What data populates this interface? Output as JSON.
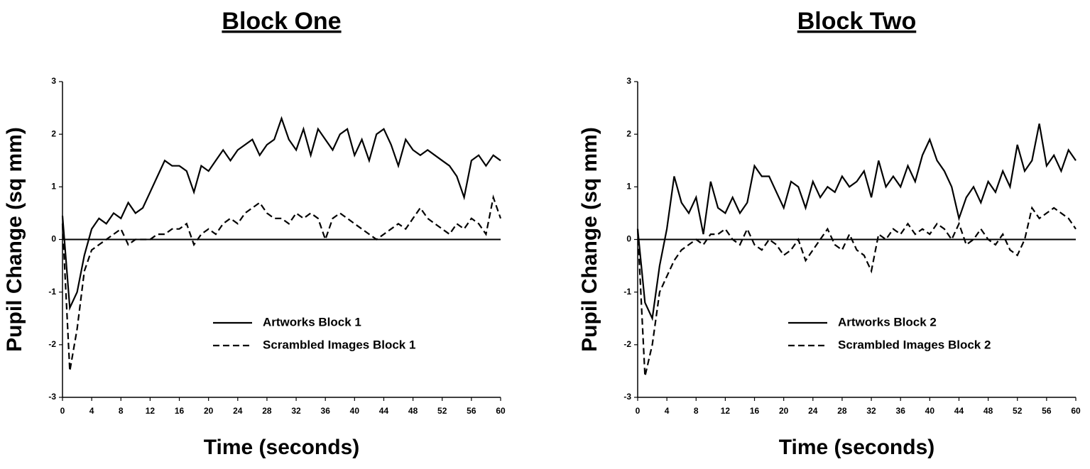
{
  "chart_data": [
    {
      "type": "line",
      "title": "Block One",
      "xlabel": "Time (seconds)",
      "ylabel": "Pupil Change (sq mm)",
      "x": [
        0,
        1,
        2,
        3,
        4,
        5,
        6,
        7,
        8,
        9,
        10,
        11,
        12,
        13,
        14,
        15,
        16,
        17,
        18,
        19,
        20,
        21,
        22,
        23,
        24,
        25,
        26,
        27,
        28,
        29,
        30,
        31,
        32,
        33,
        34,
        35,
        36,
        37,
        38,
        39,
        40,
        41,
        42,
        43,
        44,
        45,
        46,
        47,
        48,
        49,
        50,
        51,
        52,
        53,
        54,
        55,
        56,
        57,
        58,
        59,
        60
      ],
      "series": [
        {
          "name": "Artworks Block 1",
          "color": "#000000",
          "dash": "solid",
          "values": [
            0.45,
            -1.3,
            -1.0,
            -0.3,
            0.2,
            0.4,
            0.3,
            0.5,
            0.4,
            0.7,
            0.5,
            0.6,
            0.9,
            1.2,
            1.5,
            1.4,
            1.4,
            1.3,
            0.9,
            1.4,
            1.3,
            1.5,
            1.7,
            1.5,
            1.7,
            1.8,
            1.9,
            1.6,
            1.8,
            1.9,
            2.3,
            1.9,
            1.7,
            2.1,
            1.6,
            2.1,
            1.9,
            1.7,
            2.0,
            2.1,
            1.6,
            1.9,
            1.5,
            2.0,
            2.1,
            1.8,
            1.4,
            1.9,
            1.7,
            1.6,
            1.7,
            1.6,
            1.5,
            1.4,
            1.2,
            0.8,
            1.5,
            1.6,
            1.4,
            1.6,
            1.5
          ]
        },
        {
          "name": "Scrambled Images Block 1",
          "color": "#000000",
          "dash": "dashed",
          "values": [
            0.3,
            -2.5,
            -1.7,
            -0.6,
            -0.2,
            -0.1,
            0.0,
            0.1,
            0.2,
            -0.1,
            0.0,
            0.0,
            0.0,
            0.1,
            0.1,
            0.2,
            0.2,
            0.3,
            -0.1,
            0.1,
            0.2,
            0.1,
            0.3,
            0.4,
            0.3,
            0.5,
            0.6,
            0.7,
            0.5,
            0.4,
            0.4,
            0.3,
            0.5,
            0.4,
            0.5,
            0.4,
            0.0,
            0.4,
            0.5,
            0.4,
            0.3,
            0.2,
            0.1,
            0.0,
            0.1,
            0.2,
            0.3,
            0.2,
            0.4,
            0.6,
            0.4,
            0.3,
            0.2,
            0.1,
            0.3,
            0.2,
            0.4,
            0.3,
            0.1,
            0.8,
            0.4
          ]
        }
      ],
      "xlim": [
        0,
        60
      ],
      "xticks": [
        0,
        4,
        8,
        12,
        16,
        20,
        24,
        28,
        32,
        36,
        40,
        44,
        48,
        52,
        56,
        60
      ],
      "ylim": [
        -3,
        3
      ],
      "yticks": [
        -3,
        -2,
        -1,
        0,
        1,
        2,
        3
      ],
      "legend": "lower center"
    },
    {
      "type": "line",
      "title": "Block Two",
      "xlabel": "Time (seconds)",
      "ylabel": "Pupil Change (sq mm)",
      "x": [
        0,
        1,
        2,
        3,
        4,
        5,
        6,
        7,
        8,
        9,
        10,
        11,
        12,
        13,
        14,
        15,
        16,
        17,
        18,
        19,
        20,
        21,
        22,
        23,
        24,
        25,
        26,
        27,
        28,
        29,
        30,
        31,
        32,
        33,
        34,
        35,
        36,
        37,
        38,
        39,
        40,
        41,
        42,
        43,
        44,
        45,
        46,
        47,
        48,
        49,
        50,
        51,
        52,
        53,
        54,
        55,
        56,
        57,
        58,
        59,
        60
      ],
      "series": [
        {
          "name": "Artworks Block 2",
          "color": "#000000",
          "dash": "solid",
          "values": [
            0.2,
            -1.2,
            -1.5,
            -0.5,
            0.2,
            1.2,
            0.7,
            0.5,
            0.8,
            0.1,
            1.1,
            0.6,
            0.5,
            0.8,
            0.5,
            0.7,
            1.4,
            1.2,
            1.2,
            0.9,
            0.6,
            1.1,
            1.0,
            0.6,
            1.1,
            0.8,
            1.0,
            0.9,
            1.2,
            1.0,
            1.1,
            1.3,
            0.8,
            1.5,
            1.0,
            1.2,
            1.0,
            1.4,
            1.1,
            1.6,
            1.9,
            1.5,
            1.3,
            1.0,
            0.4,
            0.8,
            1.0,
            0.7,
            1.1,
            0.9,
            1.3,
            1.0,
            1.8,
            1.3,
            1.5,
            2.2,
            1.4,
            1.6,
            1.3,
            1.7,
            1.5
          ]
        },
        {
          "name": "Scrambled Images Block 2",
          "color": "#000000",
          "dash": "dashed",
          "values": [
            0.2,
            -2.6,
            -2.0,
            -1.0,
            -0.7,
            -0.4,
            -0.2,
            -0.1,
            0.0,
            -0.1,
            0.1,
            0.1,
            0.2,
            0.0,
            -0.1,
            0.2,
            -0.1,
            -0.2,
            0.0,
            -0.1,
            -0.3,
            -0.2,
            0.0,
            -0.4,
            -0.2,
            0.0,
            0.2,
            -0.1,
            -0.2,
            0.1,
            -0.2,
            -0.3,
            -0.6,
            0.1,
            0.0,
            0.2,
            0.1,
            0.3,
            0.1,
            0.2,
            0.1,
            0.3,
            0.2,
            0.0,
            0.3,
            -0.1,
            0.0,
            0.2,
            0.0,
            -0.1,
            0.1,
            -0.2,
            -0.3,
            0.0,
            0.6,
            0.4,
            0.5,
            0.6,
            0.5,
            0.4,
            0.2
          ]
        }
      ],
      "xlim": [
        0,
        60
      ],
      "xticks": [
        0,
        4,
        8,
        12,
        16,
        20,
        24,
        28,
        32,
        36,
        40,
        44,
        48,
        52,
        56,
        60
      ],
      "ylim": [
        -3,
        3
      ],
      "yticks": [
        -3,
        -2,
        -1,
        0,
        1,
        2,
        3
      ],
      "legend": "lower center"
    }
  ]
}
